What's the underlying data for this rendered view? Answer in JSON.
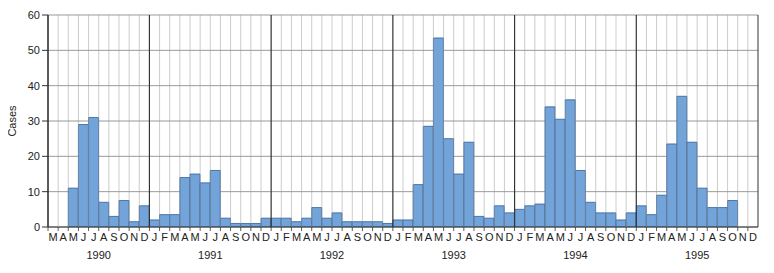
{
  "chart_data": {
    "type": "bar",
    "y_label": "Cases",
    "categories": [
      "M",
      "A",
      "M",
      "J",
      "J",
      "A",
      "S",
      "O",
      "N",
      "D",
      "J",
      "F",
      "M",
      "A",
      "M",
      "J",
      "J",
      "A",
      "S",
      "O",
      "N",
      "D",
      "J",
      "F",
      "M",
      "A",
      "M",
      "J",
      "J",
      "A",
      "S",
      "O",
      "N",
      "D",
      "J",
      "F",
      "M",
      "A",
      "M",
      "J",
      "J",
      "A",
      "S",
      "O",
      "N",
      "D",
      "J",
      "F",
      "M",
      "A",
      "M",
      "J",
      "J",
      "A",
      "S",
      "O",
      "N",
      "D",
      "J",
      "F",
      "M",
      "A",
      "M",
      "J",
      "J",
      "A",
      "S",
      "O",
      "N",
      "D"
    ],
    "values": [
      0,
      0,
      11,
      29,
      31,
      7,
      3,
      7.5,
      1.5,
      6,
      2,
      3.5,
      3.5,
      14,
      15,
      12.5,
      16,
      2.5,
      1,
      1,
      1,
      2.5,
      2.5,
      2.5,
      1.5,
      2.5,
      5.5,
      2.5,
      4,
      1.5,
      1.5,
      1.5,
      1.5,
      1,
      2,
      2,
      12,
      28.5,
      53.5,
      25,
      15,
      24,
      3,
      2.5,
      6,
      4,
      5,
      6,
      6.5,
      34,
      30.5,
      36,
      16,
      7,
      4,
      4,
      2,
      4,
      6,
      3.5,
      9,
      23.5,
      37,
      24,
      11,
      5.5,
      5.5,
      7.5,
      0,
      0
    ],
    "years": [
      "1990",
      "1991",
      "1992",
      "1993",
      "1994",
      "1995"
    ],
    "color": "#72a3d9",
    "ylim": [
      0,
      60
    ],
    "yticks": [
      0,
      10,
      20,
      30,
      40,
      50,
      60
    ],
    "grid": true
  }
}
